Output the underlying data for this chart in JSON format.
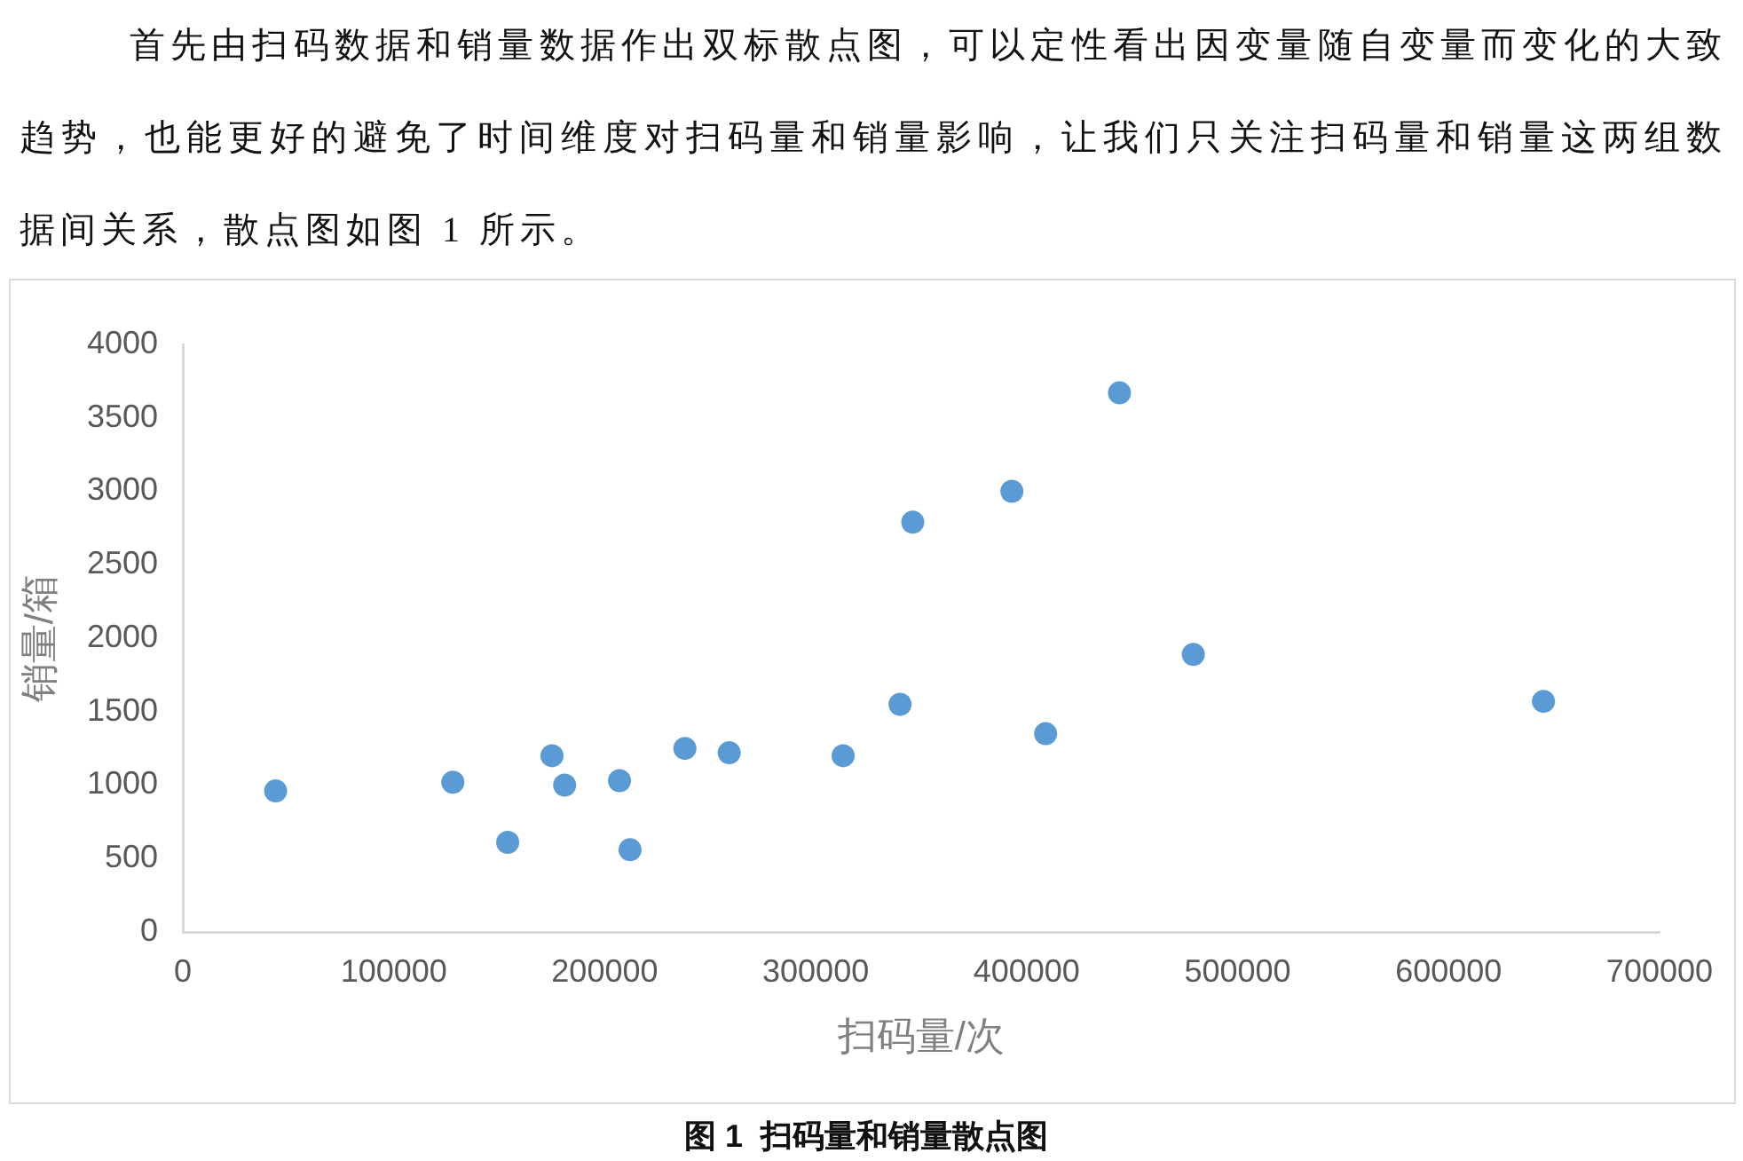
{
  "chart_data": {
    "type": "scatter",
    "title": "图 1  扫码量和销量散点图",
    "xlabel": "扫码量/次",
    "ylabel": "销量/箱",
    "annotations": [
      "首先由扫码数据和销量数据作出双标散点图，可以定性看出因变量随自变量而变化的大致趋势，也能更好的避免了时间维度对扫码量和销量影响，让我们只关注扫码量和销量这两组数据间关系，散点图如图 1 所示。"
    ],
    "x": [
      44000,
      128000,
      154000,
      175000,
      181000,
      207000,
      212000,
      238000,
      259000,
      313000,
      340000,
      346000,
      393000,
      409000,
      444000,
      479000,
      645000
    ],
    "series": [
      {
        "color": "#5b9bd5",
        "values": [
          960,
          1020,
          610,
          1200,
          1000,
          1030,
          560,
          1250,
          1220,
          1200,
          1550,
          2790,
          3000,
          1350,
          3670,
          1890,
          1570
        ]
      }
    ],
    "xlim": [
      0,
      700000
    ],
    "ylim": [
      0,
      4000
    ],
    "xticks": [
      0,
      100000,
      200000,
      300000,
      400000,
      500000,
      600000,
      700000
    ],
    "yticks": [
      0,
      500,
      1000,
      1500,
      2000,
      2500,
      3000,
      3500,
      4000
    ],
    "grid": false,
    "legend": false,
    "marker": "circle"
  }
}
